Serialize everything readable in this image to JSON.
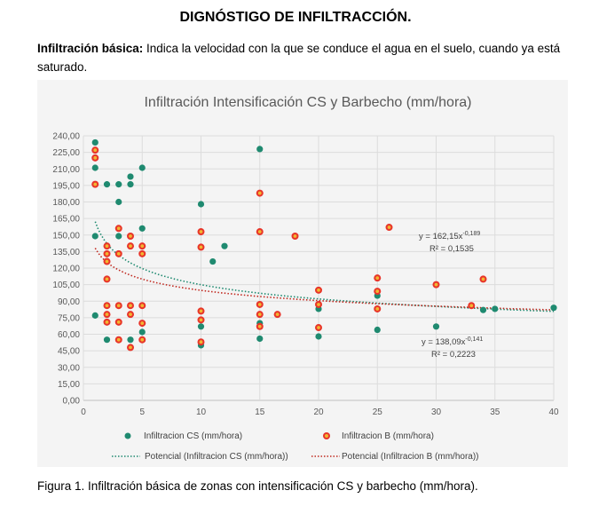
{
  "document": {
    "heading": "DIGNÓSTIGO DE INFILTRACCIÓN.",
    "intro_term": "Infiltración básica:",
    "intro_text": " Indica la velocidad con la que se conduce el agua en el suelo, cuando ya está saturado.",
    "caption": "Figura 1. Infiltración básica de zonas con intensificación CS y barbecho (mm/hora)."
  },
  "chart_data": {
    "type": "scatter",
    "title": "Infiltración Intensificación CS y Barbecho (mm/hora)",
    "xlim": [
      0,
      40
    ],
    "ylim": [
      0,
      240
    ],
    "x_ticks": [
      "0",
      "5",
      "10",
      "15",
      "20",
      "25",
      "30",
      "35",
      "40"
    ],
    "y_ticks": [
      "0,00",
      "15,00",
      "30,00",
      "45,00",
      "60,00",
      "75,00",
      "90,00",
      "105,00",
      "120,00",
      "135,00",
      "150,00",
      "165,00",
      "180,00",
      "195,00",
      "210,00",
      "225,00",
      "240,00"
    ],
    "grid": true,
    "legend_position": "bottom",
    "series": [
      {
        "name": "Infiltracion CS (mm/hora)",
        "color": "#1f8a70",
        "marker": "circle",
        "points": [
          [
            1,
            234
          ],
          [
            1,
            211
          ],
          [
            1,
            149
          ],
          [
            1,
            77
          ],
          [
            2,
            196
          ],
          [
            2,
            140
          ],
          [
            2,
            86
          ],
          [
            2,
            55
          ],
          [
            3,
            196
          ],
          [
            3,
            180
          ],
          [
            3,
            149
          ],
          [
            4,
            203
          ],
          [
            4,
            196
          ],
          [
            4,
            55
          ],
          [
            5,
            211
          ],
          [
            5,
            156
          ],
          [
            5,
            62
          ],
          [
            10,
            178
          ],
          [
            10,
            67
          ],
          [
            10,
            50
          ],
          [
            11,
            126
          ],
          [
            12,
            140
          ],
          [
            15,
            228
          ],
          [
            15,
            70
          ],
          [
            15,
            56
          ],
          [
            20,
            83
          ],
          [
            20,
            58
          ],
          [
            25,
            95
          ],
          [
            25,
            64
          ],
          [
            30,
            67
          ],
          [
            34,
            82
          ],
          [
            35,
            83
          ],
          [
            40,
            84
          ]
        ]
      },
      {
        "name": "Infiltracion B (mm/hora)",
        "color": "#e8352a",
        "marker": "circle-ring",
        "points": [
          [
            1,
            227
          ],
          [
            1,
            220
          ],
          [
            1,
            196
          ],
          [
            2,
            140
          ],
          [
            2,
            133
          ],
          [
            2,
            126
          ],
          [
            2,
            110
          ],
          [
            2,
            86
          ],
          [
            2,
            78
          ],
          [
            2,
            71
          ],
          [
            3,
            156
          ],
          [
            3,
            133
          ],
          [
            3,
            86
          ],
          [
            3,
            71
          ],
          [
            3,
            55
          ],
          [
            4,
            149
          ],
          [
            4,
            140
          ],
          [
            4,
            86
          ],
          [
            4,
            78
          ],
          [
            4,
            48
          ],
          [
            5,
            140
          ],
          [
            5,
            133
          ],
          [
            5,
            86
          ],
          [
            5,
            70
          ],
          [
            5,
            55
          ],
          [
            10,
            153
          ],
          [
            10,
            139
          ],
          [
            10,
            81
          ],
          [
            10,
            73
          ],
          [
            10,
            53
          ],
          [
            15,
            188
          ],
          [
            15,
            153
          ],
          [
            15,
            87
          ],
          [
            15,
            78
          ],
          [
            15,
            67
          ],
          [
            16.5,
            78
          ],
          [
            18,
            149
          ],
          [
            20,
            100
          ],
          [
            20,
            87
          ],
          [
            20,
            66
          ],
          [
            25,
            111
          ],
          [
            25,
            99
          ],
          [
            25,
            83
          ],
          [
            26,
            157
          ],
          [
            30,
            105
          ],
          [
            33,
            86
          ],
          [
            34,
            110
          ]
        ]
      },
      {
        "name": "Potencial (Infiltracion CS (mm/hora))",
        "color": "#1f8a70",
        "line_style": "dotted",
        "model": {
          "a": 162.15,
          "b": -0.189
        }
      },
      {
        "name": "Potencial (Infiltracion B (mm/hora))",
        "color": "#c0281f",
        "line_style": "dotted",
        "model": {
          "a": 138.09,
          "b": -0.141
        }
      }
    ],
    "annotations": {
      "eq_cs": {
        "text": "y = 162,15x",
        "exp": "-0,189",
        "r2": "R² = 0,1535"
      },
      "eq_b": {
        "text": "y = 138,09x",
        "exp": "-0,141",
        "r2": "R² = 0,2223"
      }
    }
  }
}
